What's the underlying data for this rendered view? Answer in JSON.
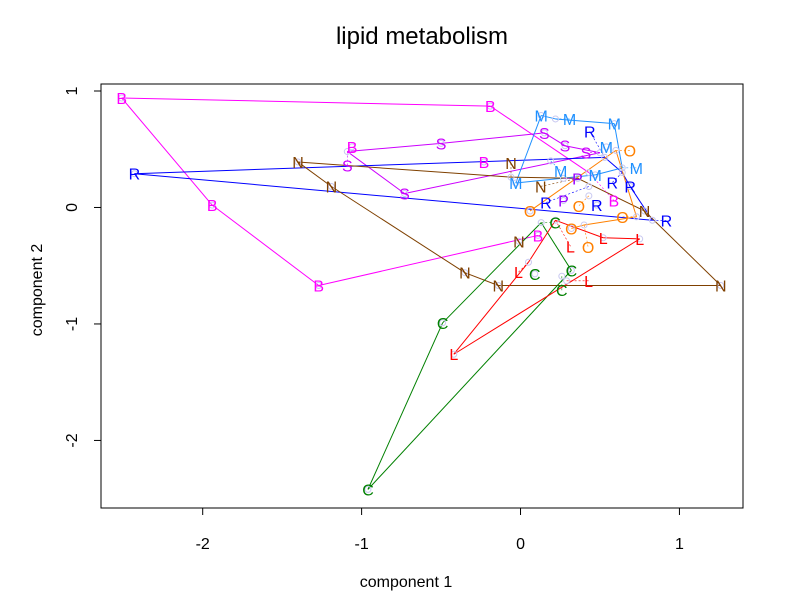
{
  "chart_data": {
    "type": "scatter",
    "title": "lipid metabolism",
    "xlabel": "component 1",
    "ylabel": "component 2",
    "xlim": [
      -2.64,
      1.4
    ],
    "ylim": [
      -2.58,
      1.06
    ],
    "xticks": [
      -2,
      -1,
      0,
      1
    ],
    "yticks": [
      -2,
      -1,
      0,
      1
    ],
    "xtick_labels": [
      "-2",
      "-1",
      "0",
      "1"
    ],
    "ytick_labels": [
      "-2",
      "-1",
      "0",
      "1"
    ],
    "grid": false,
    "legend": "none",
    "series": [
      {
        "name": "B",
        "symbol": "B",
        "color": "#FF00FF",
        "points": [
          [
            -0.19,
            0.87
          ],
          [
            -2.51,
            0.94
          ],
          [
            -1.94,
            0.02
          ],
          [
            -1.27,
            -0.67
          ],
          [
            0.11,
            -0.24
          ],
          [
            0.43,
            0.3
          ],
          [
            -1.06,
            0.52
          ],
          [
            -0.23,
            0.39
          ]
        ],
        "path": [
          [
            0,
            1
          ],
          [
            1,
            2
          ],
          [
            2,
            3
          ],
          [
            3,
            4
          ],
          [
            0,
            5
          ]
        ]
      },
      {
        "name": "S",
        "symbol": "S",
        "color": "#CC00FF",
        "points": [
          [
            -1.09,
            0.48
          ],
          [
            -0.5,
            0.55
          ],
          [
            0.15,
            0.64
          ],
          [
            0.28,
            0.53
          ],
          [
            0.5,
            0.47
          ],
          [
            -0.73,
            0.12
          ]
        ],
        "path": [
          [
            0,
            1
          ],
          [
            1,
            2
          ],
          [
            2,
            3
          ],
          [
            3,
            4
          ],
          [
            0,
            5
          ],
          [
            5,
            4
          ]
        ]
      },
      {
        "name": "R",
        "symbol": "R",
        "color": "#0000FF",
        "points": [
          [
            -2.43,
            0.29
          ],
          [
            0.53,
            0.43
          ],
          [
            0.64,
            0.3
          ],
          [
            0.69,
            0.18
          ],
          [
            0.83,
            -0.11
          ],
          [
            0.43,
            0.18
          ],
          [
            0.48,
            0.02
          ]
        ],
        "path": [
          [
            0,
            1
          ],
          [
            1,
            2
          ],
          [
            2,
            3
          ],
          [
            3,
            4
          ],
          [
            4,
            0
          ]
        ]
      },
      {
        "name": "M",
        "symbol": "M",
        "color": "#1E90FF",
        "points": [
          [
            0.13,
            0.79
          ],
          [
            0.22,
            0.76
          ],
          [
            0.59,
            0.72
          ],
          [
            0.54,
            0.52
          ],
          [
            0.19,
            0.4
          ],
          [
            -0.03,
            0.21
          ],
          [
            0.47,
            0.28
          ],
          [
            0.64,
            0.34
          ]
        ],
        "path": [
          [
            5,
            0
          ],
          [
            0,
            1
          ],
          [
            1,
            2
          ],
          [
            2,
            7
          ],
          [
            7,
            6
          ],
          [
            6,
            5
          ]
        ]
      },
      {
        "name": "N",
        "symbol": "N",
        "color": "#7F4000",
        "points": [
          [
            -1.4,
            0.39
          ],
          [
            -1.19,
            0.18
          ],
          [
            -0.35,
            -0.56
          ],
          [
            -0.14,
            -0.67
          ],
          [
            1.26,
            -0.67
          ],
          [
            0.78,
            -0.03
          ],
          [
            0.36,
            0.25
          ],
          [
            -0.06,
            0.26
          ],
          [
            -0.01,
            -0.29
          ]
        ],
        "path": [
          [
            0,
            1
          ],
          [
            1,
            2
          ],
          [
            2,
            3
          ],
          [
            3,
            4
          ],
          [
            4,
            5
          ],
          [
            5,
            6
          ],
          [
            0,
            7
          ],
          [
            7,
            6
          ]
        ]
      },
      {
        "name": "P",
        "symbol": "P",
        "color": "#9900FF",
        "points": [
          [
            0.27,
            0.25
          ],
          [
            0.27,
            0.06
          ]
        ],
        "path": []
      },
      {
        "name": "O",
        "symbol": "O",
        "color": "#FF8000",
        "points": [
          [
            0.06,
            -0.03
          ],
          [
            0.32,
            -0.18
          ],
          [
            0.4,
            -0.15
          ],
          [
            0.43,
            0.1
          ],
          [
            0.6,
            0.49
          ],
          [
            0.73,
            -0.08
          ]
        ],
        "path": [
          [
            0,
            4
          ],
          [
            4,
            5
          ],
          [
            5,
            2
          ],
          [
            2,
            1
          ]
        ]
      },
      {
        "name": "C",
        "symbol": "C",
        "color": "#008000",
        "points": [
          [
            0.13,
            -0.13
          ],
          [
            0.09,
            -0.57
          ],
          [
            0.32,
            -0.54
          ],
          [
            0.26,
            -0.59
          ],
          [
            -0.49,
            -0.99
          ],
          [
            -0.96,
            -2.42
          ]
        ],
        "path": [
          [
            0,
            2
          ],
          [
            2,
            5
          ],
          [
            5,
            4
          ],
          [
            4,
            0
          ]
        ]
      },
      {
        "name": "L",
        "symbol": "L",
        "color": "#FF0000",
        "points": [
          [
            0.22,
            -0.11
          ],
          [
            0.52,
            -0.26
          ],
          [
            0.75,
            -0.27
          ],
          [
            0.05,
            -0.47
          ],
          [
            0.29,
            -0.63
          ],
          [
            -0.42,
            -1.26
          ]
        ],
        "path": [
          [
            0,
            1
          ],
          [
            1,
            2
          ],
          [
            2,
            5
          ],
          [
            5,
            3
          ],
          [
            3,
            0
          ]
        ]
      }
    ]
  }
}
